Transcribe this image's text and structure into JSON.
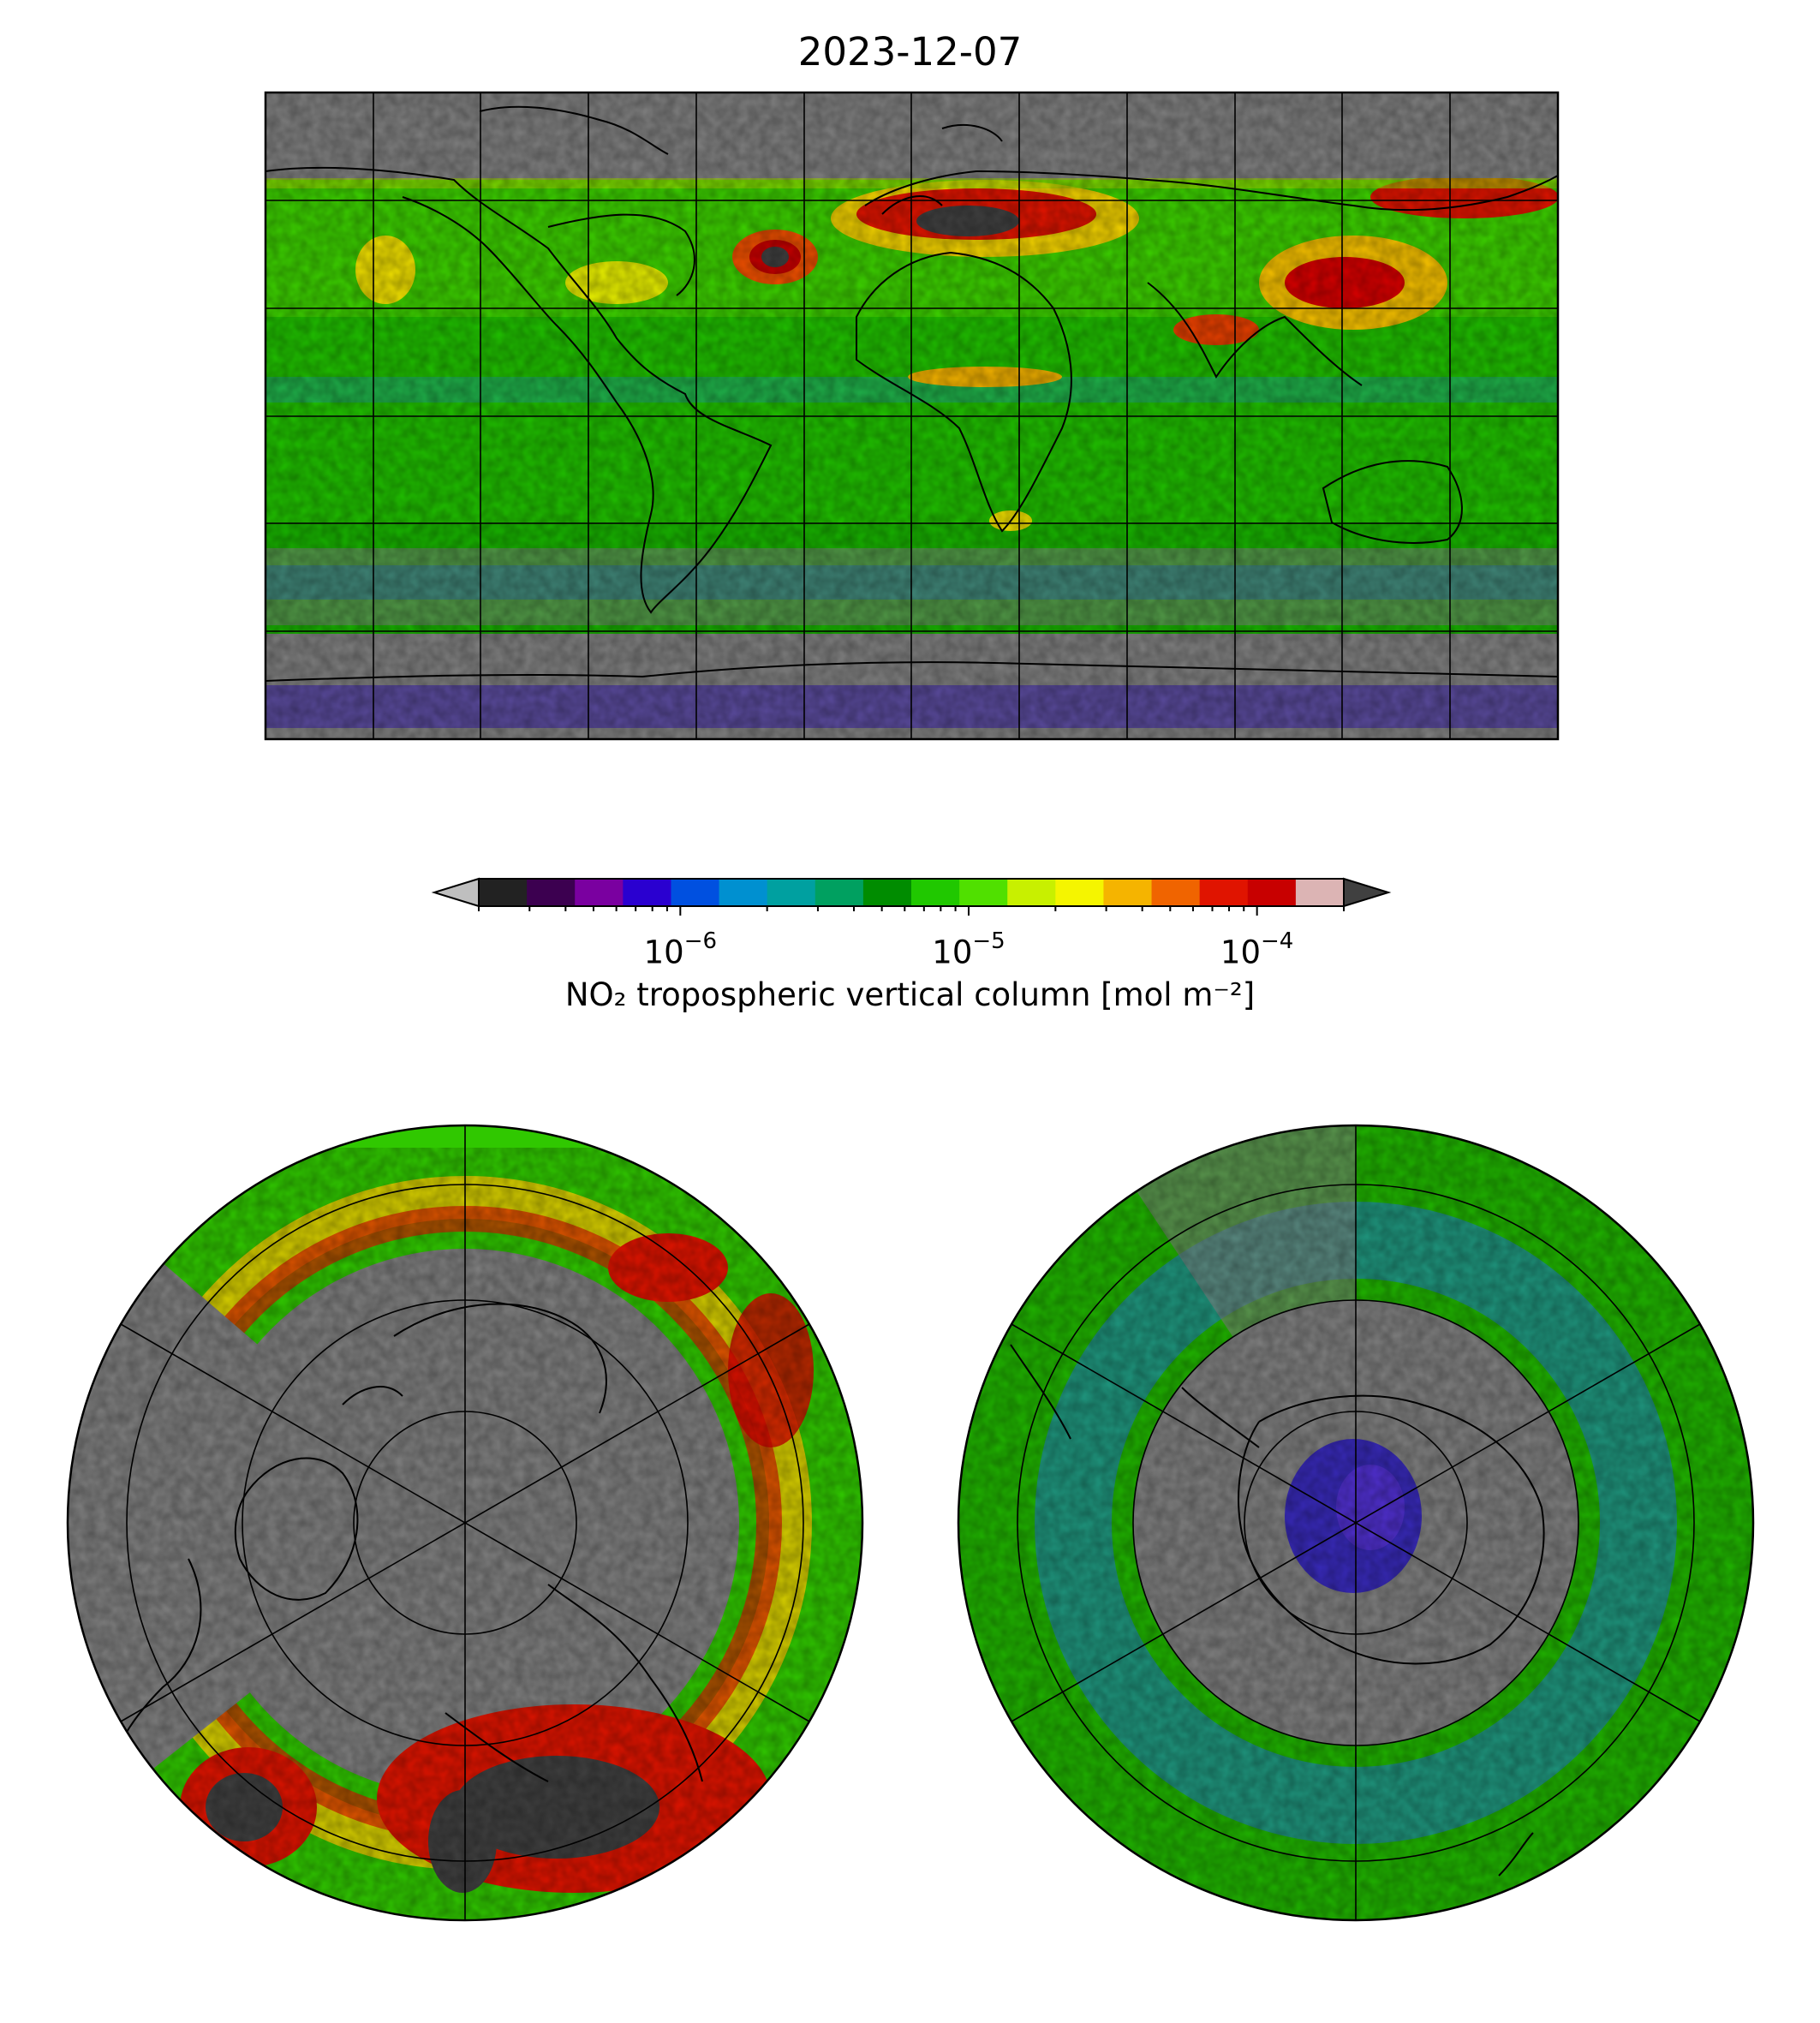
{
  "figure": {
    "title": "2023-12-07",
    "colorbar": {
      "label": "NO₂ tropospheric vertical column [mol m⁻²]",
      "scale": "log",
      "range": [
        2e-07,
        0.0002
      ],
      "extend": "both",
      "ticks": [
        {
          "base": "10",
          "exp": "−6",
          "value": 1e-06
        },
        {
          "base": "10",
          "exp": "−5",
          "value": 1e-05
        },
        {
          "base": "10",
          "exp": "−4",
          "value": 0.0001
        }
      ],
      "colors": [
        "#222222",
        "#3c0050",
        "#7a00a0",
        "#2a00d0",
        "#0050e0",
        "#0090d0",
        "#00a0a0",
        "#00a060",
        "#008c00",
        "#20c800",
        "#50e000",
        "#c8f000",
        "#f5f500",
        "#f5b400",
        "#f06400",
        "#e01400",
        "#c80000",
        "#dcb4b4"
      ],
      "under_color": "#bfbfbf",
      "over_color": "#404040"
    },
    "maps": [
      {
        "name": "global-plate-carree",
        "projection": "PlateCarree",
        "gridlines": true,
        "coastlines": true
      },
      {
        "name": "north-polar-stereo",
        "projection": "NorthPolarStereo",
        "gridlines": true,
        "coastlines": true
      },
      {
        "name": "south-polar-stereo",
        "projection": "SouthPolarStereo",
        "gridlines": true,
        "coastlines": true
      }
    ],
    "colors": {
      "no_data": "#808080",
      "background": "#ffffff"
    }
  }
}
